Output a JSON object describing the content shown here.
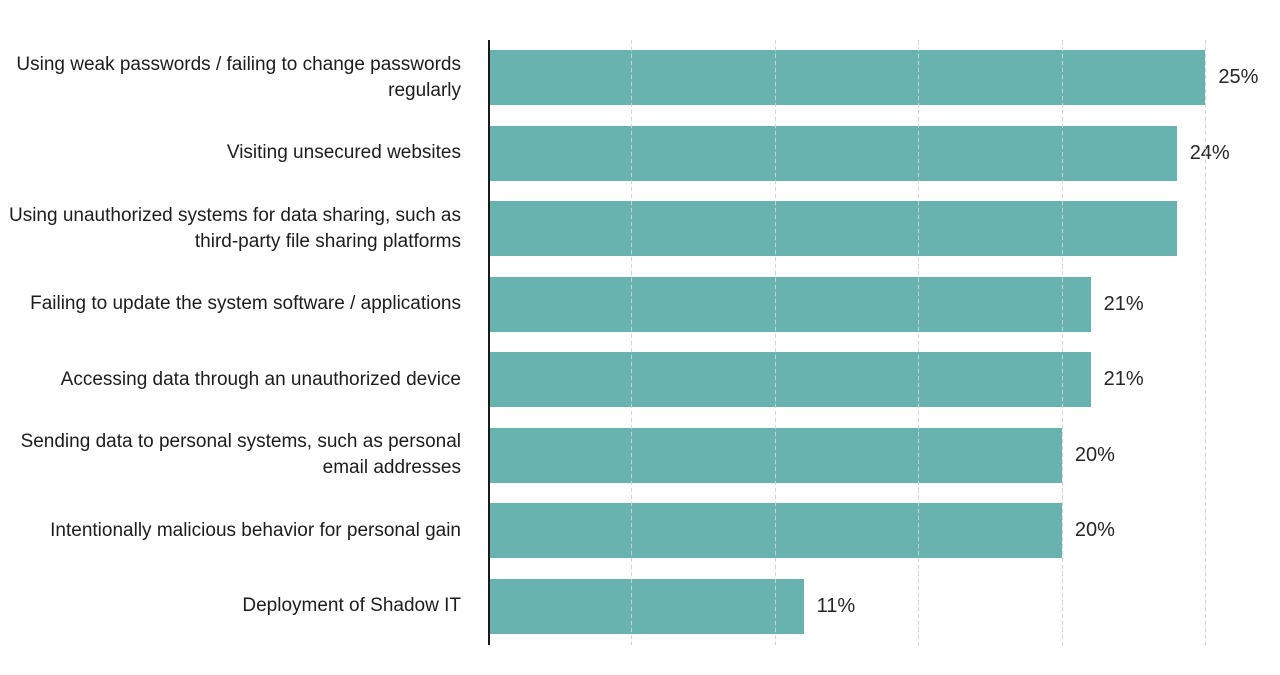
{
  "chart_data": {
    "type": "bar",
    "orientation": "horizontal",
    "title": "",
    "xlabel": "",
    "ylabel": "",
    "categories": [
      "Using weak passwords / failing to change passwords regularly",
      "Visiting unsecured websites",
      "Using unauthorized systems for data sharing, such as third-party file sharing platforms",
      "Failing to update the system software / applications",
      "Accessing data through an unauthorized device",
      "Sending data to personal systems, such as personal email addresses",
      "Intentionally malicious behavior for personal gain",
      "Deployment of Shadow IT"
    ],
    "values": [
      25,
      24,
      24,
      21,
      21,
      20,
      20,
      11
    ],
    "value_labels": [
      "25%",
      "24%",
      "",
      "21%",
      "21%",
      "20%",
      "20%",
      "11%"
    ],
    "unit": "%",
    "xlim": [
      0,
      27.6
    ],
    "gridlines": [
      5,
      10,
      15,
      20,
      25
    ],
    "grid": "vertical-dashed",
    "legend": false,
    "colors": {
      "bar": "#68b3b0",
      "axis": "#1a1a1a",
      "gridline": "#d2d2d2",
      "category_text": "#1d1d1d",
      "value_text": "#262626",
      "background": "#ffffff"
    }
  }
}
